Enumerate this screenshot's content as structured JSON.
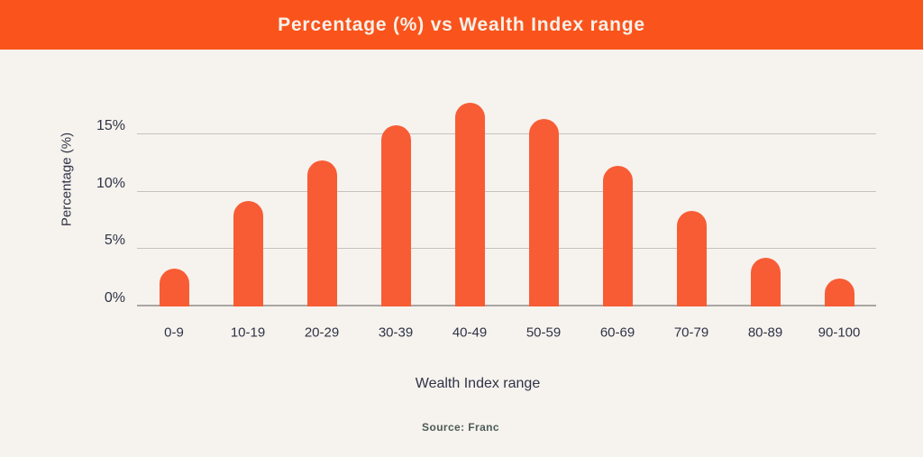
{
  "header": {
    "title": "Percentage (%) vs Wealth Index range"
  },
  "chart_data": {
    "type": "bar",
    "title": "Percentage (%) vs Wealth Index range",
    "categories": [
      "0-9",
      "10-19",
      "20-29",
      "30-39",
      "40-49",
      "50-59",
      "60-69",
      "70-79",
      "80-89",
      "90-100"
    ],
    "values": [
      3.3,
      9.2,
      12.7,
      15.8,
      17.7,
      16.3,
      12.2,
      8.3,
      4.2,
      2.4
    ],
    "xlabel": "Wealth Index range",
    "ylabel": "Percentage (%)",
    "ylim": [
      0,
      18.9
    ],
    "yticks": [
      0,
      5,
      10,
      15
    ],
    "ytick_labels": [
      "0%",
      "5%",
      "10%",
      "15%"
    ],
    "grid": true,
    "legend": "none"
  },
  "source": {
    "text": "Source: Franc"
  },
  "colors": {
    "header_bg": "#fa531b",
    "header_text": "#f7f1ea",
    "bar": "#f85c35",
    "background": "#f6f2ed",
    "gridline": "#c5c1be",
    "axis_line": "#a9a6a3",
    "tick_text": "#2f3347",
    "source_text": "#4d5b56"
  }
}
